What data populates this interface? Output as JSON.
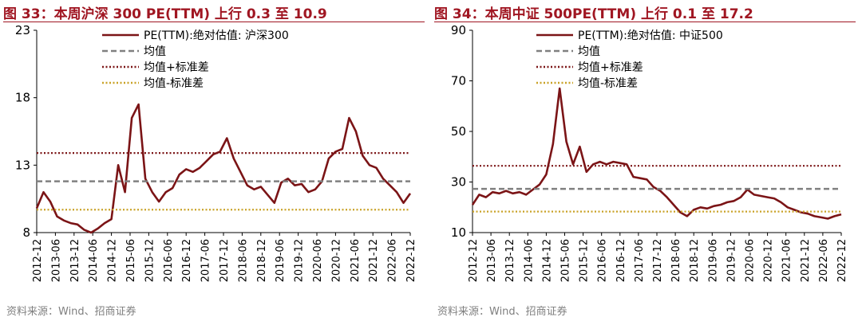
{
  "panels": [
    {
      "title": "图 33：本周沪深 300 PE(TTM) 上行 0.3 至 10.9",
      "source": "资料来源：Wind、招商证券"
    },
    {
      "title": "图 34：本周中证 500PE(TTM) 上行 0.1 至 17.2",
      "source": "资料来源：Wind、招商证券"
    }
  ],
  "chart_data": [
    {
      "type": "line",
      "ylim": [
        8,
        23
      ],
      "yticks": [
        8,
        13,
        18,
        23
      ],
      "x_tick_labels": [
        "2012-12",
        "2013-06",
        "2013-12",
        "2014-06",
        "2014-12",
        "2015-06",
        "2015-12",
        "2016-06",
        "2016-12",
        "2017-06",
        "2017-12",
        "2018-06",
        "2018-12",
        "2019-06",
        "2019-12",
        "2020-06",
        "2020-12",
        "2021-06",
        "2021-12",
        "2022-06",
        "2022-12"
      ],
      "series": [
        {
          "name": "PE(TTM):绝对估值: 沪深300",
          "style": "solid",
          "color": "#7b1416",
          "values": [
            9.8,
            11.0,
            10.3,
            9.2,
            8.9,
            8.7,
            8.6,
            8.2,
            8.0,
            8.3,
            8.7,
            9.0,
            13.0,
            11.0,
            16.5,
            17.5,
            12.0,
            11.0,
            10.3,
            11.0,
            11.3,
            12.3,
            12.7,
            12.5,
            12.8,
            13.3,
            13.8,
            14.0,
            15.0,
            13.5,
            12.5,
            11.5,
            11.2,
            11.4,
            10.8,
            10.2,
            11.7,
            12.0,
            11.5,
            11.6,
            11.0,
            11.2,
            11.8,
            13.5,
            14.0,
            14.2,
            16.5,
            15.5,
            13.7,
            13.0,
            12.8,
            12.0,
            11.5,
            11.0,
            10.2,
            10.9
          ]
        },
        {
          "name": "均值",
          "style": "dashed",
          "color": "#808080",
          "values": [
            11.8
          ]
        },
        {
          "name": "均值+标准差",
          "style": "dotted",
          "color": "#7b1416",
          "values": [
            13.9
          ]
        },
        {
          "name": "均值-标准差",
          "style": "dotted",
          "color": "#c9a227",
          "values": [
            9.7
          ]
        }
      ]
    },
    {
      "type": "line",
      "ylim": [
        10,
        90
      ],
      "yticks": [
        10,
        30,
        50,
        70,
        90
      ],
      "x_tick_labels": [
        "2012-12",
        "2013-06",
        "2013-12",
        "2014-06",
        "2014-12",
        "2015-06",
        "2015-12",
        "2016-06",
        "2016-12",
        "2017-06",
        "2017-12",
        "2018-06",
        "2018-12",
        "2019-06",
        "2019-12",
        "2020-06",
        "2020-12",
        "2021-06",
        "2021-12",
        "2022-06",
        "2022-12"
      ],
      "series": [
        {
          "name": "PE(TTM):绝对估值: 中证500",
          "style": "solid",
          "color": "#7b1416",
          "values": [
            21.0,
            25.0,
            24.0,
            26.0,
            25.5,
            26.5,
            25.5,
            26.0,
            25.0,
            27.0,
            29.0,
            33.0,
            45.0,
            67.0,
            46.0,
            37.0,
            44.0,
            34.0,
            37.0,
            38.0,
            37.0,
            38.0,
            37.5,
            37.0,
            32.0,
            31.5,
            31.0,
            28.0,
            26.5,
            24.0,
            21.0,
            18.0,
            16.5,
            19.0,
            20.0,
            19.5,
            20.5,
            21.0,
            22.0,
            22.5,
            24.0,
            27.0,
            25.0,
            24.5,
            24.0,
            23.5,
            22.0,
            20.0,
            19.0,
            18.0,
            17.5,
            16.5,
            16.0,
            15.5,
            16.5,
            17.2
          ]
        },
        {
          "name": "均值",
          "style": "dashed",
          "color": "#808080",
          "values": [
            27.3
          ]
        },
        {
          "name": "均值+标准差",
          "style": "dotted",
          "color": "#7b1416",
          "values": [
            36.4
          ]
        },
        {
          "name": "均值-标准差",
          "style": "dotted",
          "color": "#c9a227",
          "values": [
            18.3
          ]
        }
      ]
    }
  ]
}
